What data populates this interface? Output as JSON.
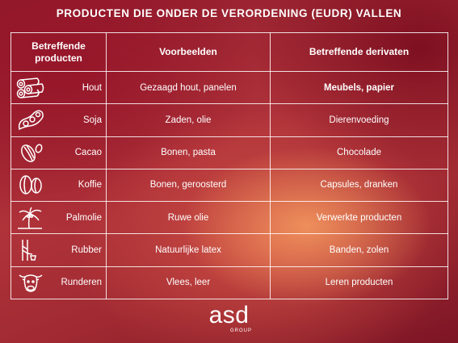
{
  "title": "PRODUCTEN DIE ONDER DE VERORDENING (EUDR) VALLEN",
  "headers": {
    "products": "Betreffende producten",
    "examples": "Voorbeelden",
    "derivatives": "Betreffende derivaten"
  },
  "rows": [
    {
      "product": "Hout",
      "icon": "logs-icon",
      "example": "Gezaagd hout, panelen",
      "derivative": "Meubels, papier"
    },
    {
      "product": "Soja",
      "icon": "soybean-icon",
      "example": "Zaden, olie",
      "derivative": "Dierenvoeding"
    },
    {
      "product": "Cacao",
      "icon": "cocoa-pod-icon",
      "example": "Bonen, pasta",
      "derivative": "Chocolade"
    },
    {
      "product": "Koffie",
      "icon": "coffee-beans-icon",
      "example": "Bonen, geroosterd",
      "derivative": "Capsules, dranken"
    },
    {
      "product": "Palmolie",
      "icon": "palm-tree-icon",
      "example": "Ruwe olie",
      "derivative": "Verwerkte producten"
    },
    {
      "product": "Rubber",
      "icon": "rubber-tapping-icon",
      "example": "Natuurlijke latex",
      "derivative": "Banden, zolen"
    },
    {
      "product": "Runderen",
      "icon": "cow-icon",
      "example": "Vlees, leer",
      "derivative": "Leren producten"
    }
  ],
  "logo": {
    "main": "asd",
    "sub": "GROUP"
  }
}
